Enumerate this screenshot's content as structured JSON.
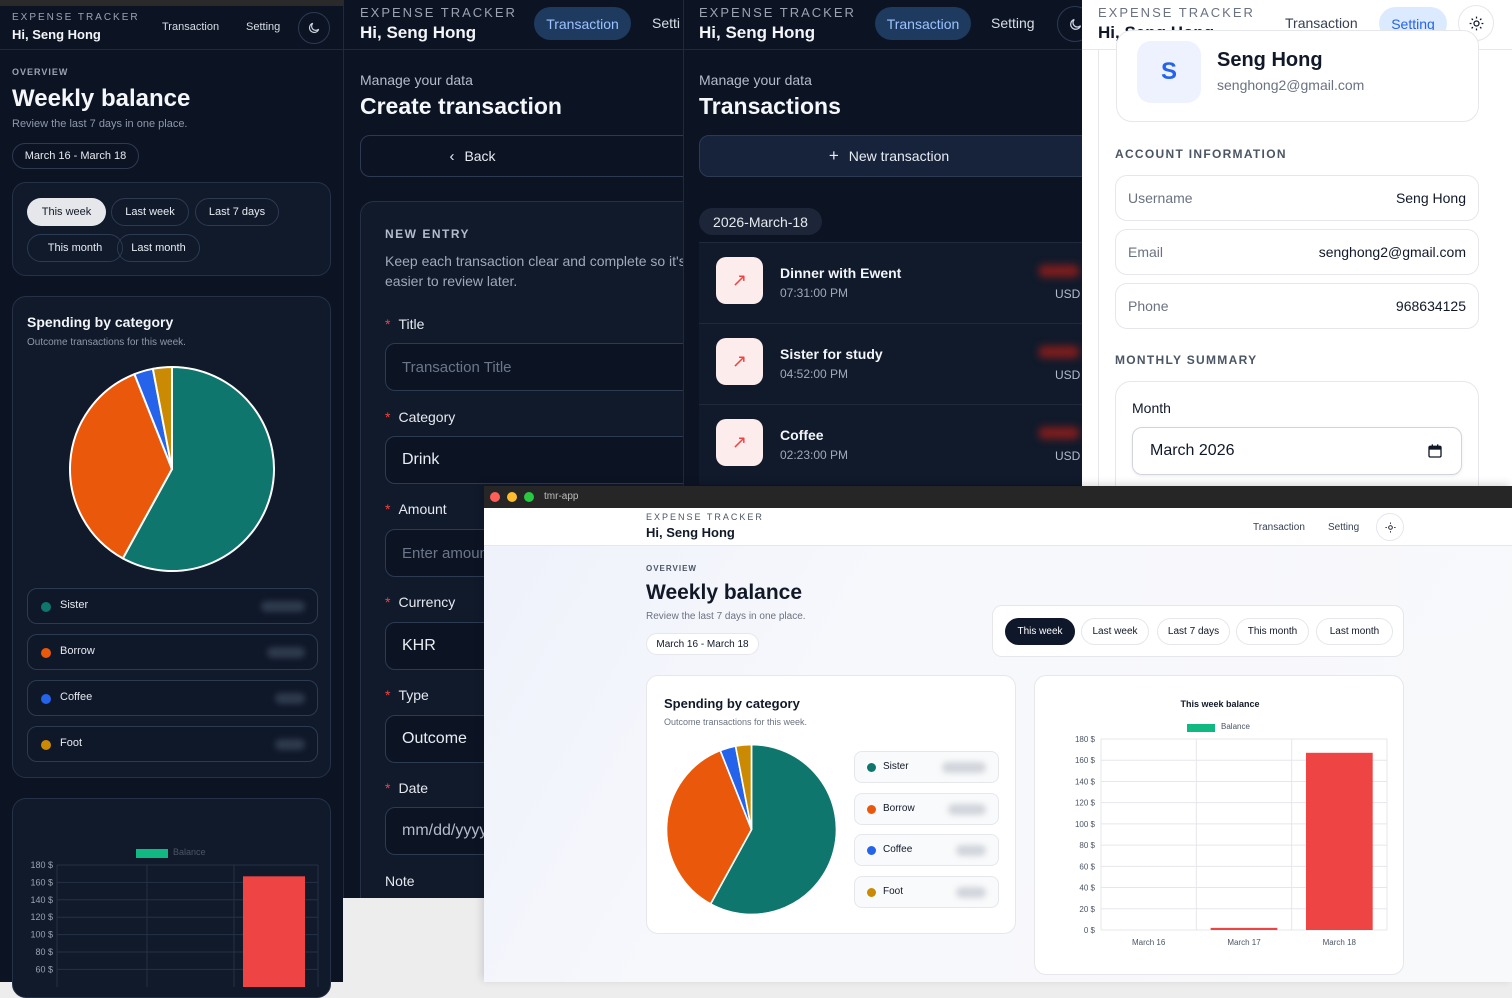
{
  "brand": {
    "eyebrow": "EXPENSE TRACKER",
    "greeting": "Hi, Seng Hong"
  },
  "nav": {
    "transaction": "Transaction",
    "setting": "Setting",
    "setting_cut": "Setti"
  },
  "overview": {
    "eyebrow": "OVERVIEW",
    "title": "Weekly balance",
    "subtitle": "Review the last 7 days in one place.",
    "range": "March 16 - March 18",
    "filters": [
      "This week",
      "Last week",
      "Last 7 days",
      "This month",
      "Last month"
    ]
  },
  "spending": {
    "title": "Spending by category",
    "subtitle": "Outcome transactions for this week.",
    "items": [
      {
        "name": "Sister",
        "color": "#0f766e"
      },
      {
        "name": "Borrow",
        "color": "#ea580c"
      },
      {
        "name": "Coffee",
        "color": "#2563eb"
      },
      {
        "name": "Foot",
        "color": "#ca8a04"
      }
    ]
  },
  "balance_chart": {
    "title": "This week balance",
    "legend": "Balance",
    "bar_color": "#ef4444",
    "legend_color": "#10b981"
  },
  "chart_data": [
    {
      "type": "pie",
      "title": "Spending by category",
      "categories": [
        "Sister",
        "Borrow",
        "Coffee",
        "Foot"
      ],
      "values": [
        58,
        36,
        3,
        3
      ]
    },
    {
      "type": "bar",
      "title": "This week balance",
      "categories": [
        "March 16",
        "March 17",
        "March 18"
      ],
      "series": [
        {
          "name": "Balance",
          "values": [
            0,
            2,
            167
          ]
        }
      ],
      "ylim": [
        0,
        180
      ],
      "yticks": [
        "0 $",
        "20 $",
        "40 $",
        "60 $",
        "80 $",
        "100 $",
        "120 $",
        "140 $",
        "160 $",
        "180 $"
      ]
    }
  ],
  "create": {
    "eyebrow": "Manage your data",
    "title": "Create transaction",
    "back": "Back",
    "section": "NEW ENTRY",
    "desc": "Keep each transaction clear and complete so it's easier to review later.",
    "fields": {
      "title_label": "Title",
      "title_placeholder": "Transaction Title",
      "category_label": "Category",
      "category_value": "Drink",
      "amount_label": "Amount",
      "amount_placeholder": "Enter amount",
      "currency_label": "Currency",
      "currency_value": "KHR",
      "type_label": "Type",
      "type_value": "Outcome",
      "date_label": "Date",
      "date_placeholder": "mm/dd/yyyy",
      "note_label": "Note"
    }
  },
  "transactions": {
    "eyebrow": "Manage your data",
    "title": "Transactions",
    "new_button": "New transaction",
    "date_group": "2026-March-18",
    "rows": [
      {
        "title": "Dinner with Ewent",
        "time": "07:31:00 PM",
        "currency": "USD"
      },
      {
        "title": "Sister for study",
        "time": "04:52:00 PM",
        "currency": "USD"
      },
      {
        "title": "Coffee",
        "time": "02:23:00 PM",
        "currency": "USD"
      }
    ]
  },
  "settings": {
    "avatar_letter": "S",
    "name": "Seng Hong",
    "email": "senghong2@gmail.com",
    "account_heading": "ACCOUNT INFORMATION",
    "account": [
      {
        "label": "Username",
        "value": "Seng Hong"
      },
      {
        "label": "Email",
        "value": "senghong2@gmail.com"
      },
      {
        "label": "Phone",
        "value": "968634125"
      }
    ],
    "summary_heading": "MONTHLY SUMMARY",
    "month_label": "Month",
    "month_value": "March 2026"
  },
  "window": {
    "title": "tmr-app"
  },
  "colors": {
    "dark_bg": "#0c1424",
    "accent": "#2563eb",
    "danger": "#ef4444"
  }
}
